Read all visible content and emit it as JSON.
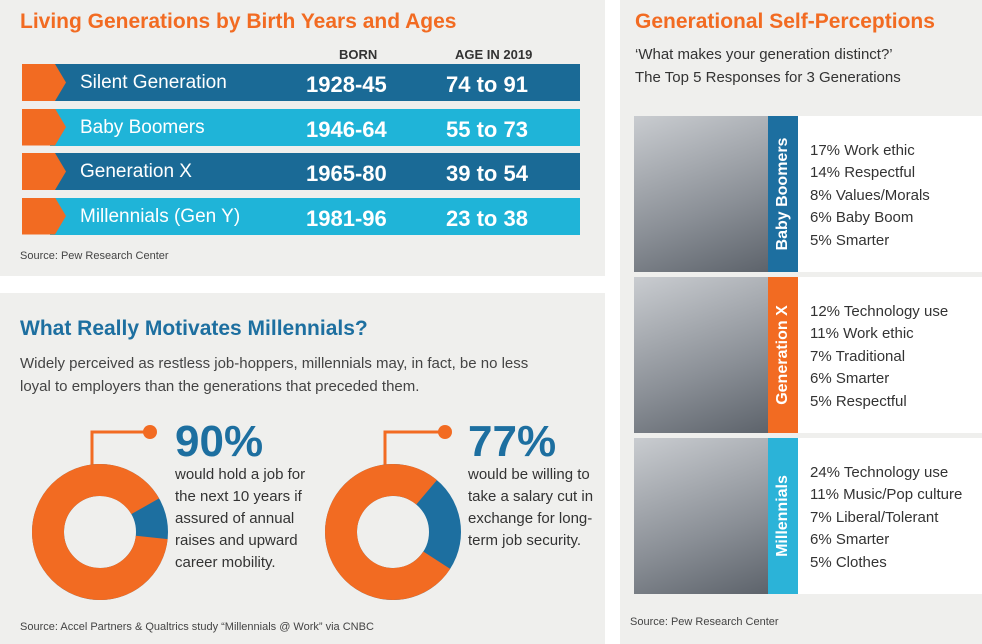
{
  "generations": {
    "title": "Living Generations by Birth Years and Ages",
    "headers": [
      "BORN",
      "AGE IN 2019"
    ],
    "rows": [
      [
        "Silent Generation",
        "1928-45",
        "74 to 91"
      ],
      [
        "Baby Boomers",
        "1946-64",
        "55 to 73"
      ],
      [
        "Generation X",
        "1965-80",
        "39 to 54"
      ],
      [
        "Millennials (Gen Y)",
        "1981-96",
        "23 to 38"
      ]
    ],
    "source": "Source: Pew Research Center"
  },
  "motivation": {
    "title": "What Really Motivates Millennials?",
    "intro": "Widely perceived as restless job-hoppers, millennials may, in fact, be no less loyal to employers than the generations that preceded them.",
    "stats": [
      {
        "value": 90,
        "label": "90%",
        "text": "would hold a job for the next 10 years if assured of annual raises and upward career mobility."
      },
      {
        "value": 77,
        "label": "77%",
        "text": "would be willing to take a salary cut in exchange for long-term job security."
      }
    ],
    "source": "Source: Accel Partners & Qualtrics study “Millennials @ Work” via CNBC"
  },
  "perceptions": {
    "title": "Generational Self-Perceptions",
    "question": "‘What makes your generation distinct?’",
    "subtitle": "The Top 5 Responses for 3 Generations",
    "groups": [
      {
        "name": "Baby Boomers",
        "responses": [
          "17% Work ethic",
          "14% Respectful",
          "8% Values/Morals",
          "6% Baby Boom",
          "5% Smarter"
        ]
      },
      {
        "name": "Generation X",
        "responses": [
          "12% Technology use",
          "11% Work ethic",
          "7% Traditional",
          "6% Smarter",
          "5% Respectful"
        ]
      },
      {
        "name": "Millennials",
        "responses": [
          "24% Technology use",
          "11% Music/Pop culture",
          "7% Liberal/Tolerant",
          "6% Smarter",
          "5% Clothes"
        ]
      }
    ],
    "source": "Source: Pew Research Center"
  }
}
